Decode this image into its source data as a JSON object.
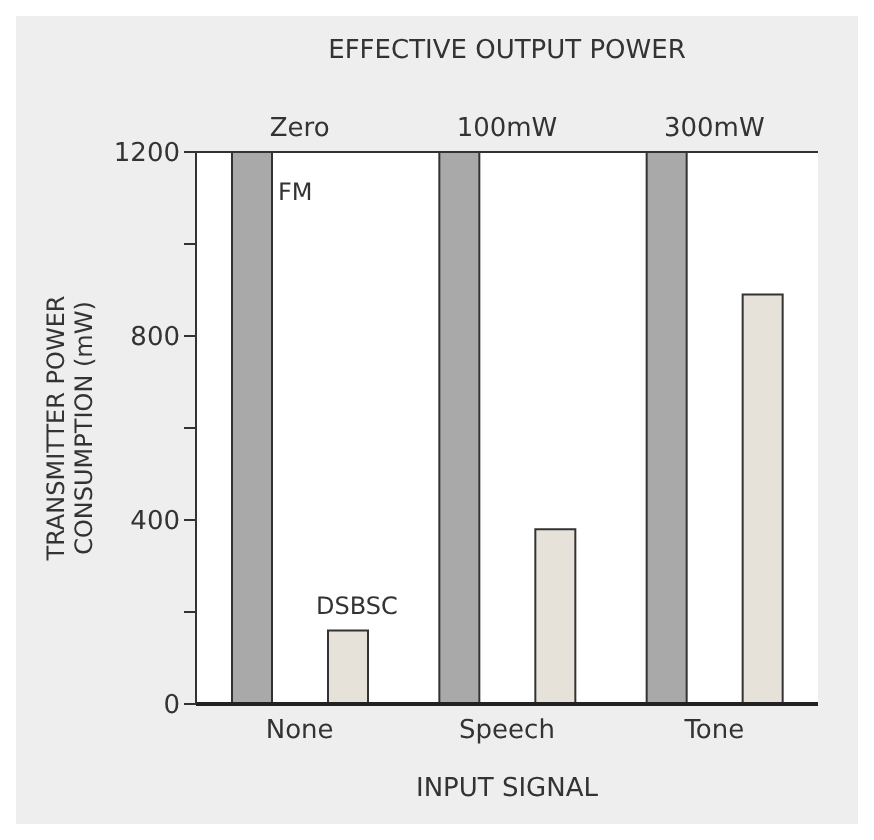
{
  "chart_data": {
    "type": "bar",
    "x2label": "EFFECTIVE OUTPUT POWER",
    "xlabel": "INPUT SIGNAL",
    "ylabel": "TRANSMITTER POWER CONSUMPTION (mW)",
    "categories": [
      "None",
      "Speech",
      "Tone"
    ],
    "annotations": [
      "Zero",
      "100mW",
      "300mW"
    ],
    "series": [
      {
        "name": "FM",
        "color": "#a9a9a9",
        "values": [
          1200,
          1200,
          1200
        ]
      },
      {
        "name": "DSBSC",
        "color": "#e6e2da",
        "values": [
          160,
          380,
          890
        ]
      }
    ],
    "ylim": [
      0,
      1200
    ],
    "yticks": [
      0,
      {
        "value": 200,
        "label": null
      },
      400,
      {
        "value": 600,
        "label": null
      },
      800,
      {
        "value": 1000,
        "label": null
      },
      1200
    ],
    "grid": false,
    "legend": false
  }
}
